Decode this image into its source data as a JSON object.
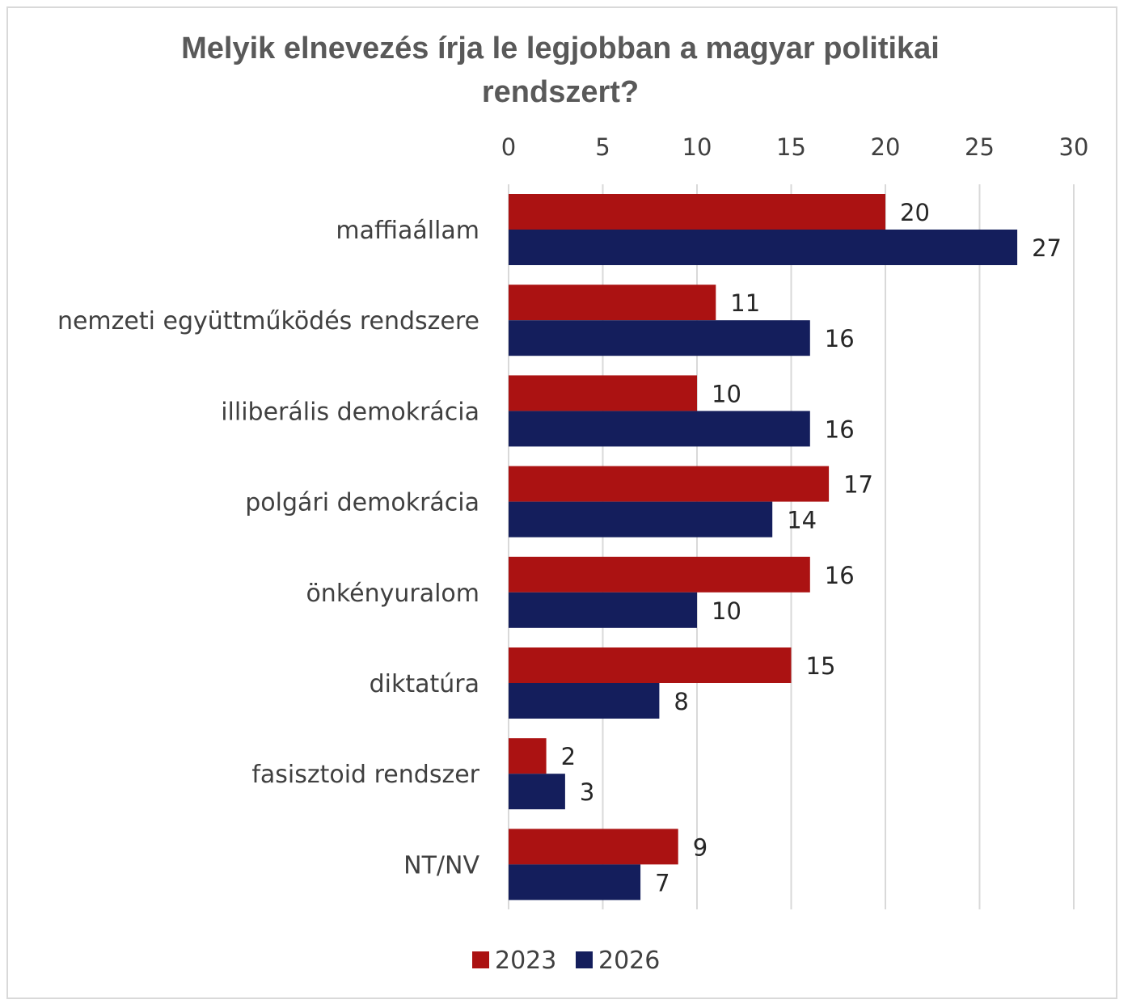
{
  "chart_data": {
    "type": "bar",
    "orientation": "horizontal",
    "title": "Melyik elnevezés írja le legjobban a magyar politikai rendszert?",
    "title_lines": [
      "Melyik elnevezés írja le legjobban a magyar politikai",
      "rendszert?"
    ],
    "categories": [
      "maffiaállam",
      "nemzeti együttműködés rendszere",
      "illiberális demokrácia",
      "polgári demokrácia",
      "önkényuralom",
      "diktatúra",
      "fasisztoid rendszer",
      "NT/NV"
    ],
    "series": [
      {
        "name": "2023",
        "color": "#ab1212",
        "values": [
          20,
          11,
          10,
          17,
          16,
          15,
          2,
          9
        ]
      },
      {
        "name": "2026",
        "color": "#141e5c",
        "values": [
          27,
          16,
          16,
          14,
          10,
          8,
          3,
          7
        ]
      }
    ],
    "xlabel": "",
    "ylabel": "",
    "xlim": [
      0,
      30
    ],
    "xticks": [
      0,
      5,
      10,
      15,
      20,
      25,
      30
    ],
    "x_axis_position": "top",
    "grid": true,
    "data_labels": true,
    "legend": {
      "position": "bottom-center",
      "entries": [
        "2023",
        "2026"
      ]
    }
  }
}
